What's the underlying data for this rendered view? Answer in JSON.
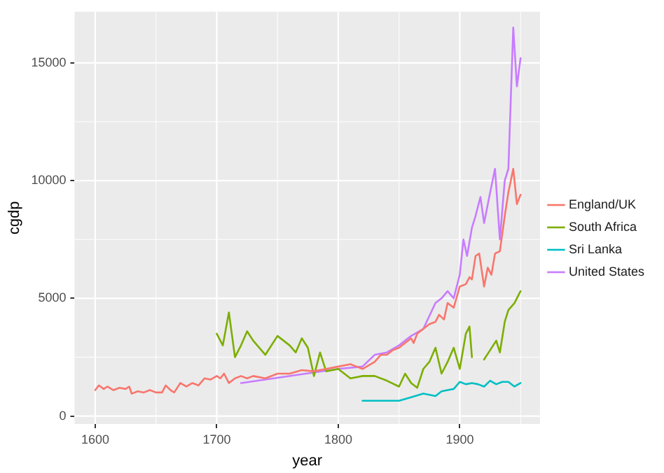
{
  "chart_data": {
    "type": "line",
    "xlabel": "year",
    "ylabel": "cgdp",
    "xlim": [
      1583,
      1966
    ],
    "ylim": [
      -340,
      17170
    ],
    "xticks": [
      1600,
      1700,
      1800,
      1900
    ],
    "yticks": [
      0,
      5000,
      10000,
      15000
    ],
    "grid": true,
    "legend": "right",
    "line_style": "solid",
    "marker": "none",
    "series": [
      {
        "name": "England/UK",
        "color": "#f8766d",
        "x": [
          1600,
          1603,
          1607,
          1610,
          1615,
          1620,
          1625,
          1628,
          1630,
          1635,
          1640,
          1645,
          1650,
          1655,
          1658,
          1662,
          1665,
          1670,
          1675,
          1680,
          1685,
          1690,
          1695,
          1700,
          1703,
          1706,
          1710,
          1715,
          1720,
          1725,
          1730,
          1740,
          1750,
          1760,
          1770,
          1780,
          1790,
          1800,
          1810,
          1815,
          1820,
          1830,
          1835,
          1840,
          1845,
          1850,
          1855,
          1860,
          1862,
          1865,
          1870,
          1875,
          1880,
          1883,
          1887,
          1890,
          1895,
          1900,
          1905,
          1908,
          1910,
          1913,
          1916,
          1920,
          1923,
          1926,
          1929,
          1933,
          1937,
          1940,
          1944,
          1947,
          1950
        ],
        "values": [
          1100,
          1300,
          1150,
          1250,
          1100,
          1200,
          1150,
          1250,
          950,
          1050,
          1000,
          1100,
          1000,
          1000,
          1300,
          1100,
          1000,
          1400,
          1250,
          1400,
          1300,
          1600,
          1550,
          1700,
          1600,
          1800,
          1400,
          1600,
          1700,
          1600,
          1700,
          1600,
          1800,
          1800,
          1950,
          1900,
          2000,
          2100,
          2200,
          2100,
          2000,
          2300,
          2600,
          2600,
          2800,
          2900,
          3100,
          3300,
          3100,
          3500,
          3700,
          3900,
          4000,
          4300,
          4100,
          4800,
          4600,
          5500,
          5600,
          5900,
          5800,
          6800,
          6900,
          5500,
          6300,
          6000,
          6900,
          7000,
          8500,
          9500,
          10500,
          9000,
          9400
        ]
      },
      {
        "name": "South Africa",
        "color": "#7cae00",
        "x": [
          1700,
          1705,
          1710,
          1715,
          1720,
          1725,
          1730,
          1740,
          1750,
          1760,
          1765,
          1770,
          1775,
          1780,
          1785,
          1790,
          1800,
          1810,
          1820,
          1830,
          1840,
          1850,
          1855,
          1860,
          1865,
          1870,
          1875,
          1880,
          1885,
          1890,
          1895,
          1900,
          1905,
          1908,
          1910,
          1915,
          1920,
          1925,
          1930,
          1933,
          1937,
          1940,
          1945,
          1950
        ],
        "values": [
          3500,
          3000,
          4400,
          2500,
          3000,
          3600,
          3200,
          2600,
          3400,
          3000,
          2700,
          3300,
          2900,
          1700,
          2700,
          1900,
          2000,
          1600,
          1700,
          1700,
          1500,
          1250,
          1800,
          1400,
          1200,
          2000,
          2300,
          2900,
          1800,
          2300,
          2900,
          2000,
          3500,
          3800,
          2500,
          null,
          2400,
          2800,
          3200,
          2700,
          4000,
          4500,
          4800,
          5300
        ]
      },
      {
        "name": "Sri Lanka",
        "color": "#00bfc4",
        "x": [
          1820,
          1850,
          1860,
          1870,
          1880,
          1885,
          1890,
          1895,
          1900,
          1905,
          1910,
          1915,
          1920,
          1925,
          1930,
          1935,
          1940,
          1945,
          1950
        ],
        "values": [
          650,
          650,
          800,
          950,
          850,
          1050,
          1100,
          1150,
          1450,
          1350,
          1400,
          1350,
          1250,
          1500,
          1350,
          1450,
          1450,
          1250,
          1400
        ]
      },
      {
        "name": "United States",
        "color": "#c77cff",
        "x": [
          1720,
          1800,
          1820,
          1830,
          1840,
          1850,
          1860,
          1870,
          1880,
          1885,
          1890,
          1895,
          1900,
          1903,
          1906,
          1910,
          1913,
          1917,
          1920,
          1925,
          1929,
          1933,
          1937,
          1940,
          1944,
          1947,
          1950
        ],
        "values": [
          1400,
          2000,
          2100,
          2600,
          2700,
          3000,
          3400,
          3700,
          4800,
          5000,
          5300,
          5000,
          6000,
          7500,
          6800,
          8000,
          8500,
          9300,
          8200,
          9500,
          10500,
          7500,
          10000,
          10500,
          16500,
          14000,
          15200
        ]
      }
    ]
  }
}
